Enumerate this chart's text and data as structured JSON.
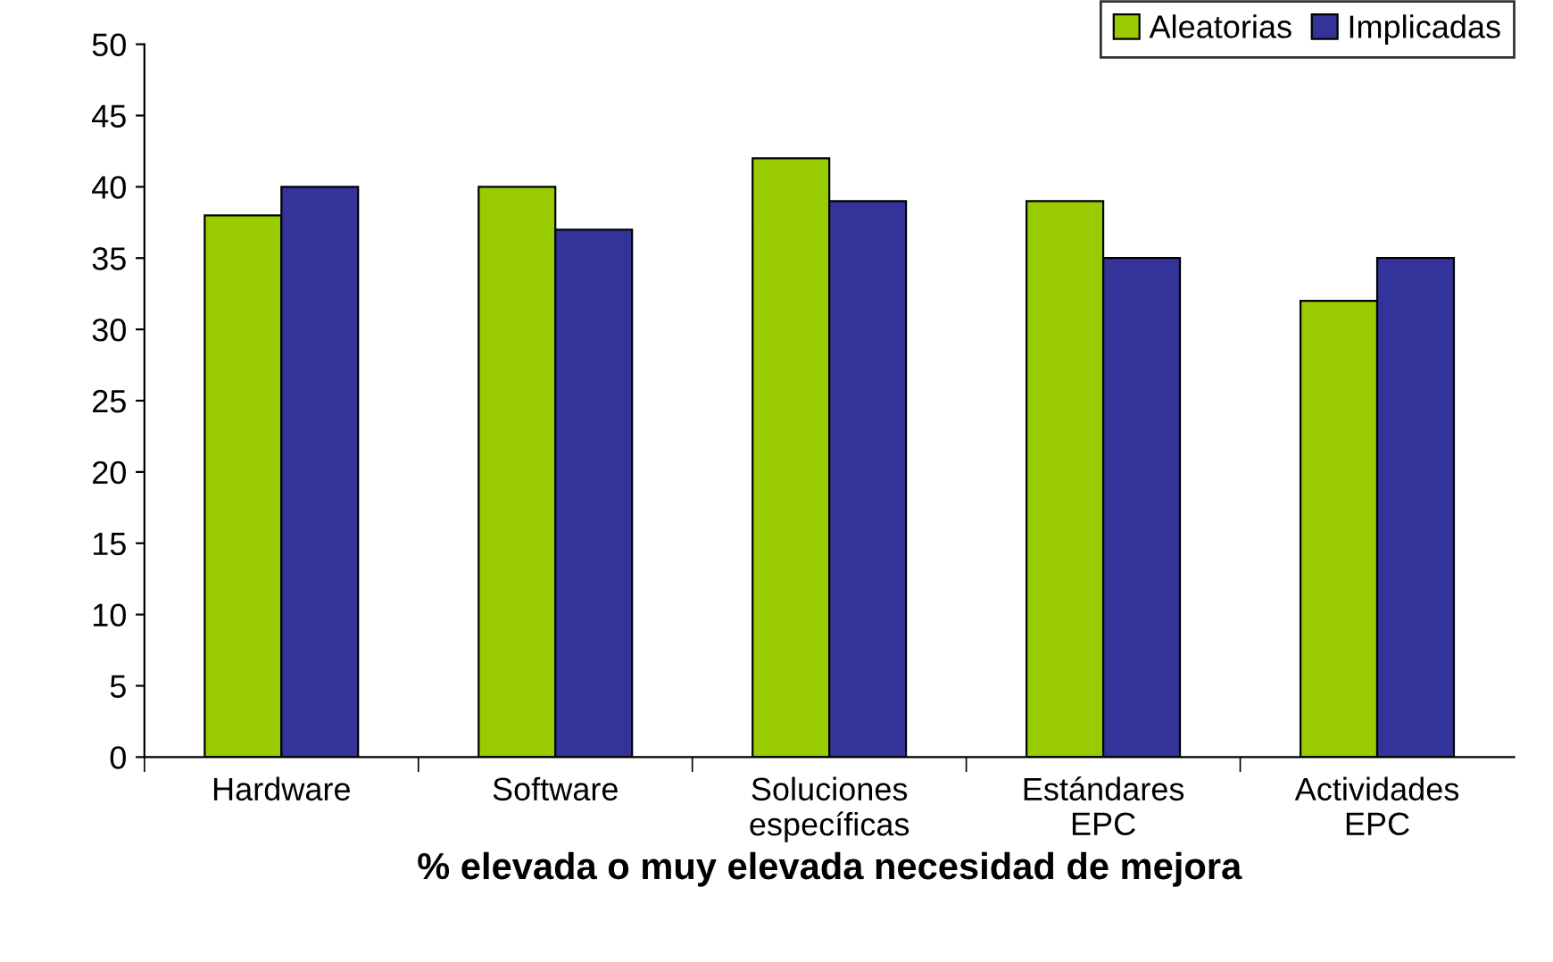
{
  "chart_data": {
    "type": "bar",
    "xlabel": "% elevada o muy elevada necesidad de mejora",
    "categories": [
      "Hardware",
      "Software",
      "Soluciones\nespecíficas",
      "Estándares\nEPC",
      "Actividades\nEPC"
    ],
    "series": [
      {
        "name": "Aleatorias",
        "color": "#99cc00",
        "values": [
          38,
          40,
          42,
          39,
          32
        ]
      },
      {
        "name": "Implicadas",
        "color": "#333399",
        "values": [
          40,
          37,
          39,
          35,
          35
        ]
      }
    ],
    "ylim": [
      0,
      50
    ],
    "yticks": [
      0,
      5,
      10,
      15,
      20,
      25,
      30,
      35,
      40,
      45,
      50
    ],
    "grid": false,
    "legend": "top right"
  }
}
